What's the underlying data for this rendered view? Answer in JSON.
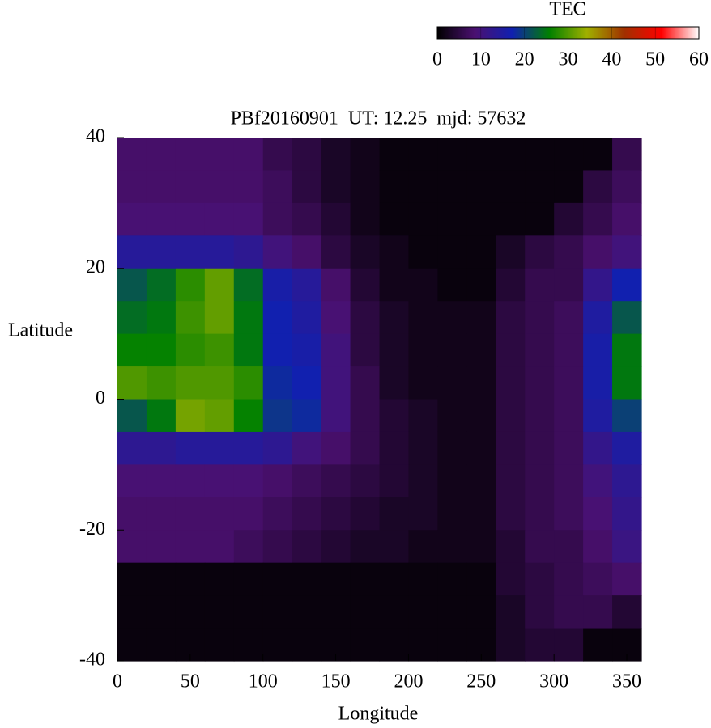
{
  "chart_data": {
    "type": "heatmap",
    "title": "PBf20160901  UT: 12.25  mjd: 57632",
    "x_label": "Longitude",
    "y_label": "Latitude",
    "x": [
      10,
      30,
      50,
      70,
      90,
      110,
      130,
      150,
      170,
      190,
      210,
      230,
      250,
      270,
      290,
      310,
      330,
      350
    ],
    "y": [
      37.5,
      32.5,
      27.5,
      22.5,
      17.5,
      12.5,
      7.5,
      2.5,
      -2.5,
      -7.5,
      -12.5,
      -17.5,
      -22.5,
      -27.5,
      -32.5,
      -37.5
    ],
    "z": [
      [
        8,
        8,
        8,
        8,
        8,
        6,
        5,
        3,
        2,
        1,
        1,
        1,
        1,
        1,
        1,
        1,
        1,
        6
      ],
      [
        8,
        8,
        8,
        8,
        8,
        7,
        5,
        3,
        2,
        1,
        1,
        1,
        1,
        1,
        1,
        1,
        5,
        7
      ],
      [
        9,
        9,
        9,
        9,
        9,
        7,
        6,
        4,
        2,
        1,
        1,
        1,
        1,
        1,
        1,
        4,
        6,
        8
      ],
      [
        14,
        14,
        14,
        14,
        13,
        10,
        8,
        5,
        3,
        2,
        1,
        1,
        1,
        3,
        5,
        6,
        8,
        10
      ],
      [
        22,
        24,
        28,
        31,
        24,
        16,
        14,
        8,
        4,
        2,
        2,
        1,
        1,
        4,
        6,
        6,
        12,
        17
      ],
      [
        24,
        25,
        29,
        31,
        25,
        17,
        15,
        9,
        5,
        3,
        2,
        2,
        2,
        5,
        6,
        7,
        15,
        22
      ],
      [
        26,
        26,
        28,
        29,
        25,
        17,
        16,
        10,
        5,
        3,
        2,
        2,
        2,
        5,
        6,
        7,
        16,
        25
      ],
      [
        30,
        29,
        30,
        30,
        28,
        18,
        17,
        10,
        6,
        3,
        2,
        2,
        2,
        5,
        6,
        7,
        16,
        25
      ],
      [
        22,
        25,
        32,
        31,
        26,
        19,
        18,
        10,
        6,
        4,
        3,
        2,
        2,
        5,
        6,
        7,
        15,
        20
      ],
      [
        13,
        13,
        14,
        14,
        14,
        13,
        10,
        8,
        6,
        4,
        3,
        2,
        2,
        5,
        6,
        7,
        12,
        15
      ],
      [
        9,
        9,
        9,
        9,
        9,
        8,
        7,
        6,
        5,
        4,
        3,
        2,
        2,
        5,
        6,
        7,
        10,
        13
      ],
      [
        8,
        8,
        8,
        8,
        8,
        7,
        6,
        5,
        4,
        3,
        3,
        2,
        2,
        5,
        6,
        7,
        9,
        12
      ],
      [
        8,
        8,
        8,
        8,
        7,
        6,
        5,
        4,
        3,
        3,
        2,
        2,
        2,
        4,
        6,
        6,
        8,
        11
      ],
      [
        1,
        1,
        1,
        1,
        1,
        1,
        1,
        1,
        1,
        1,
        1,
        1,
        1,
        4,
        5,
        6,
        7,
        8
      ],
      [
        1,
        1,
        1,
        1,
        1,
        1,
        1,
        1,
        1,
        1,
        1,
        1,
        1,
        3,
        5,
        6,
        6,
        4
      ],
      [
        1,
        1,
        1,
        1,
        1,
        1,
        1,
        1,
        1,
        1,
        1,
        1,
        1,
        3,
        4,
        4,
        1,
        1
      ]
    ],
    "xlim": [
      0,
      360
    ],
    "ylim": [
      -40,
      40
    ],
    "xticks": [
      0,
      50,
      100,
      150,
      200,
      250,
      300,
      350
    ],
    "yticks": [
      -40,
      -20,
      0,
      20,
      40
    ],
    "colormap": [
      "#000000",
      "#4b1070",
      "#1020b0",
      "#008000",
      "#a0b000",
      "#a03000",
      "#ff0000",
      "#ffffff"
    ],
    "colorbar": {
      "title": "TEC",
      "lim": [
        0,
        60
      ],
      "ticks": [
        0,
        10,
        20,
        30,
        40,
        50,
        60
      ]
    }
  }
}
